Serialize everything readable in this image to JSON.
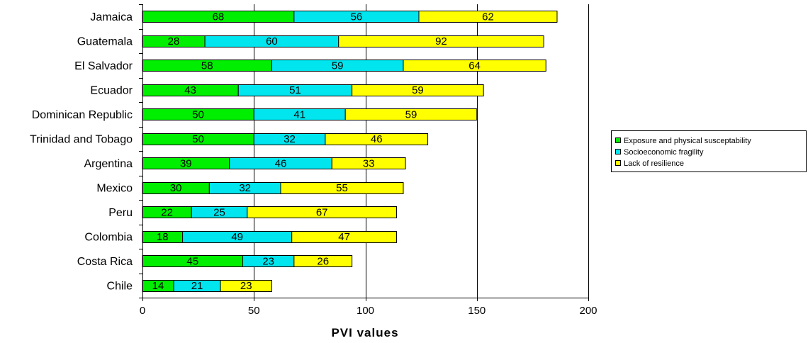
{
  "chart_data": {
    "type": "bar",
    "orientation": "horizontal",
    "stacked": true,
    "categories": [
      "Jamaica",
      "Guatemala",
      "El Salvador",
      "Ecuador",
      "Dominican Republic",
      "Trinidad and Tobago",
      "Argentina",
      "Mexico",
      "Peru",
      "Colombia",
      "Costa Rica",
      "Chile"
    ],
    "series": [
      {
        "name": "Exposure and physical susceptability",
        "color": "#00ee00",
        "values": [
          68,
          28,
          58,
          43,
          50,
          50,
          39,
          30,
          22,
          18,
          45,
          14
        ]
      },
      {
        "name": "Socioeconomic fragility",
        "color": "#00e5ee",
        "values": [
          56,
          60,
          59,
          51,
          41,
          32,
          46,
          32,
          25,
          49,
          23,
          21
        ]
      },
      {
        "name": "Lack of resilience",
        "color": "#ffff00",
        "values": [
          62,
          92,
          64,
          59,
          59,
          46,
          33,
          55,
          67,
          47,
          26,
          23
        ]
      }
    ],
    "xlabel": "PVI values",
    "xlim": [
      0,
      200
    ],
    "xticks": [
      "0",
      "50",
      "100",
      "150",
      "200"
    ],
    "grid": "vertical",
    "legend_position": "right"
  }
}
